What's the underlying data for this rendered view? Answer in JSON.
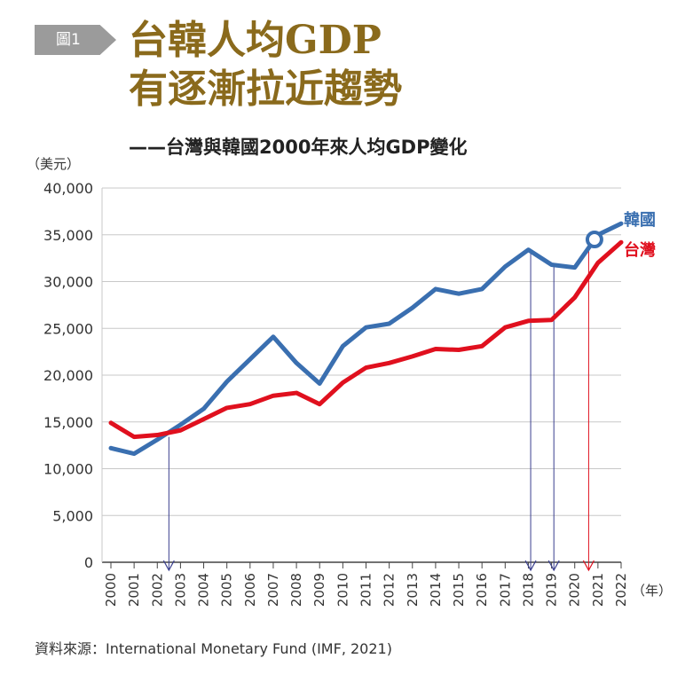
{
  "header": {
    "badge": "圖1",
    "title_line1": "台韓人均GDP",
    "title_line2": "有逐漸拉近趨勢",
    "subtitle": "——台灣與韓國2000年來人均GDP變化"
  },
  "source": "資料來源：International Monetary Fund (IMF, 2021)",
  "chart_data": {
    "type": "line",
    "ylabel": "（美元）",
    "xlabel": "（年）",
    "x": [
      2000,
      2001,
      2002,
      2003,
      2004,
      2005,
      2006,
      2007,
      2008,
      2009,
      2010,
      2011,
      2012,
      2013,
      2014,
      2015,
      2016,
      2017,
      2018,
      2019,
      2020,
      2021,
      2022
    ],
    "x_tick_labels": [
      "2000",
      "2001",
      "2002",
      "2003",
      "2004",
      "2005",
      "2006",
      "2007",
      "2008",
      "2009",
      "2010",
      "2011",
      "2012",
      "2013",
      "2014",
      "2015",
      "2016",
      "2017",
      "2018",
      "2019",
      "2020",
      "2021",
      "2022"
    ],
    "ylim": [
      0,
      40000
    ],
    "y_ticks": [
      0,
      5000,
      10000,
      15000,
      20000,
      25000,
      30000,
      35000,
      40000
    ],
    "y_tick_labels": [
      "0",
      "5,000",
      "10,000",
      "15,000",
      "20,000",
      "25,000",
      "30,000",
      "35,000",
      "40,000"
    ],
    "grid": true,
    "series": [
      {
        "name": "韓國",
        "color": "#3a6fb0",
        "x": [
          2000,
          2001,
          2002,
          2003,
          2004,
          2005,
          2006,
          2007,
          2008,
          2009,
          2010,
          2011,
          2012,
          2013,
          2014,
          2015,
          2016,
          2017,
          2018,
          2019,
          2020,
          2021,
          2022
        ],
        "values": [
          12200,
          11600,
          13100,
          14700,
          16400,
          19300,
          21700,
          24100,
          21300,
          19100,
          23100,
          25100,
          25500,
          27200,
          29200,
          28700,
          29200,
          31600,
          33400,
          31800,
          31500,
          35000,
          36200
        ]
      },
      {
        "name": "台灣",
        "color": "#e0101e",
        "x": [
          2000,
          2001,
          2002,
          2003,
          2004,
          2005,
          2006,
          2007,
          2008,
          2009,
          2010,
          2011,
          2012,
          2013,
          2014,
          2015,
          2016,
          2017,
          2018,
          2019,
          2020,
          2021,
          2022
        ],
        "values": [
          14900,
          13400,
          13600,
          14100,
          15300,
          16500,
          16900,
          17800,
          18100,
          16900,
          19200,
          20800,
          21300,
          22000,
          22800,
          22700,
          23100,
          25100,
          25800,
          25900,
          28300,
          32000,
          34200
        ]
      }
    ],
    "marker": {
      "x": 2020.85,
      "y": 34500,
      "color": "#3a6fb0"
    },
    "arrows": [
      {
        "x": 2002.5,
        "from": 13400,
        "color": "#3a3f8f"
      },
      {
        "x": 2018.1,
        "from": 33400,
        "color": "#3a3f8f"
      },
      {
        "x": 2019.1,
        "from": 31800,
        "color": "#3a3f8f"
      },
      {
        "x": 2020.6,
        "from": 33800,
        "color": "#e0101e"
      }
    ]
  }
}
